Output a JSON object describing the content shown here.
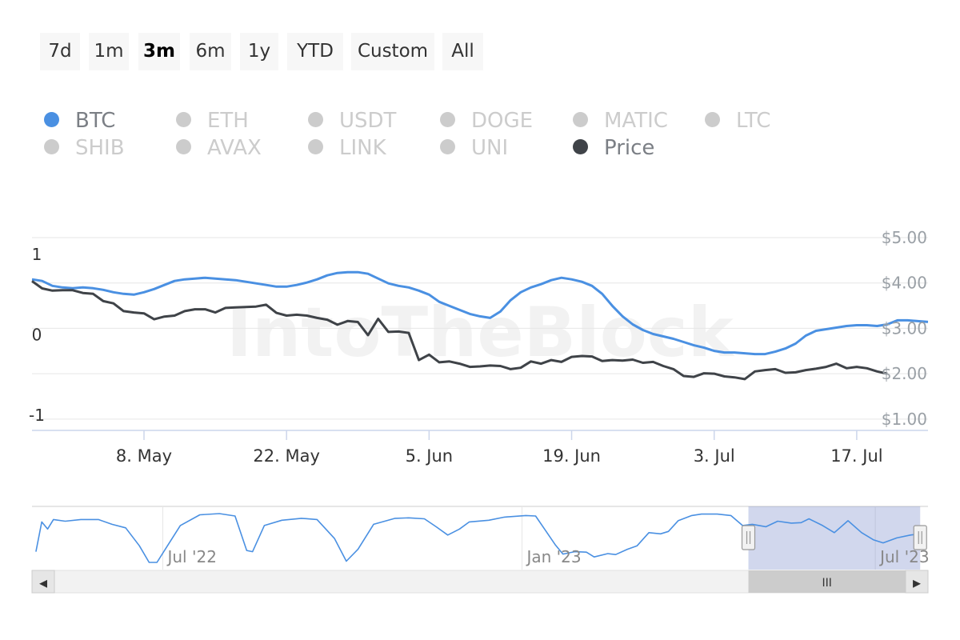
{
  "range_buttons": [
    {
      "label": "7d",
      "active": false
    },
    {
      "label": "1m",
      "active": false
    },
    {
      "label": "3m",
      "active": true
    },
    {
      "label": "6m",
      "active": false
    },
    {
      "label": "1y",
      "active": false
    },
    {
      "label": "YTD",
      "active": false
    },
    {
      "label": "Custom",
      "active": false
    },
    {
      "label": "All",
      "active": false
    }
  ],
  "legend": [
    {
      "label": "BTC",
      "color": "#4a90e2",
      "visible": true
    },
    {
      "label": "ETH",
      "color": "#cccccc",
      "visible": false
    },
    {
      "label": "USDT",
      "color": "#cccccc",
      "visible": false
    },
    {
      "label": "DOGE",
      "color": "#cccccc",
      "visible": false
    },
    {
      "label": "MATIC",
      "color": "#cccccc",
      "visible": false
    },
    {
      "label": "LTC",
      "color": "#cccccc",
      "visible": false
    },
    {
      "label": "SHIB",
      "color": "#cccccc",
      "visible": false
    },
    {
      "label": "AVAX",
      "color": "#cccccc",
      "visible": false
    },
    {
      "label": "LINK",
      "color": "#cccccc",
      "visible": false
    },
    {
      "label": "UNI",
      "color": "#cccccc",
      "visible": false
    },
    {
      "label": "Price",
      "color": "#3f4348",
      "visible": true
    }
  ],
  "watermark": "IntoTheBlock",
  "chart_data": {
    "type": "line",
    "x_ticks": [
      "8. May",
      "22. May",
      "5. Jun",
      "19. Jun",
      "3. Jul",
      "17. Jul"
    ],
    "x_tick_dates": [
      "2023-05-08",
      "2023-05-22",
      "2023-06-05",
      "2023-06-19",
      "2023-07-03",
      "2023-07-17"
    ],
    "x_range": [
      "2023-04-27",
      "2023-07-24"
    ],
    "y_left": {
      "ticks": [
        "1",
        "0",
        "-1"
      ],
      "tick_values": [
        1,
        0,
        -1
      ],
      "range": [
        -1.2,
        1.2
      ]
    },
    "y_right": {
      "ticks": [
        "$5.00",
        "$4.00",
        "$3.00",
        "$2.00",
        "$1.00"
      ],
      "tick_values": [
        5,
        4,
        3,
        2,
        1
      ],
      "range": [
        0.75,
        5.0
      ]
    },
    "grid": true,
    "legend_position": "top-left",
    "series": [
      {
        "name": "BTC",
        "axis": "left",
        "color": "#4a90e2",
        "points": [
          [
            "2023-04-27",
            0.68
          ],
          [
            "2023-04-28",
            0.66
          ],
          [
            "2023-04-29",
            0.6
          ],
          [
            "2023-04-30",
            0.58
          ],
          [
            "2023-05-01",
            0.57
          ],
          [
            "2023-05-02",
            0.58
          ],
          [
            "2023-05-03",
            0.57
          ],
          [
            "2023-05-04",
            0.55
          ],
          [
            "2023-05-05",
            0.52
          ],
          [
            "2023-05-06",
            0.5
          ],
          [
            "2023-05-07",
            0.49
          ],
          [
            "2023-05-08",
            0.52
          ],
          [
            "2023-05-09",
            0.56
          ],
          [
            "2023-05-10",
            0.61
          ],
          [
            "2023-05-11",
            0.66
          ],
          [
            "2023-05-12",
            0.68
          ],
          [
            "2023-05-13",
            0.69
          ],
          [
            "2023-05-14",
            0.7
          ],
          [
            "2023-05-15",
            0.69
          ],
          [
            "2023-05-16",
            0.68
          ],
          [
            "2023-05-17",
            0.67
          ],
          [
            "2023-05-18",
            0.65
          ],
          [
            "2023-05-19",
            0.63
          ],
          [
            "2023-05-20",
            0.61
          ],
          [
            "2023-05-21",
            0.59
          ],
          [
            "2023-05-22",
            0.59
          ],
          [
            "2023-05-23",
            0.61
          ],
          [
            "2023-05-24",
            0.64
          ],
          [
            "2023-05-25",
            0.68
          ],
          [
            "2023-05-26",
            0.73
          ],
          [
            "2023-05-27",
            0.76
          ],
          [
            "2023-05-28",
            0.77
          ],
          [
            "2023-05-29",
            0.77
          ],
          [
            "2023-05-30",
            0.75
          ],
          [
            "2023-05-31",
            0.69
          ],
          [
            "2023-06-01",
            0.63
          ],
          [
            "2023-06-02",
            0.6
          ],
          [
            "2023-06-03",
            0.58
          ],
          [
            "2023-06-04",
            0.54
          ],
          [
            "2023-06-05",
            0.49
          ],
          [
            "2023-06-06",
            0.4
          ],
          [
            "2023-06-07",
            0.35
          ],
          [
            "2023-06-08",
            0.3
          ],
          [
            "2023-06-09",
            0.25
          ],
          [
            "2023-06-10",
            0.22
          ],
          [
            "2023-06-11",
            0.2
          ],
          [
            "2023-06-12",
            0.28
          ],
          [
            "2023-06-13",
            0.42
          ],
          [
            "2023-06-14",
            0.52
          ],
          [
            "2023-06-15",
            0.58
          ],
          [
            "2023-06-16",
            0.62
          ],
          [
            "2023-06-17",
            0.67
          ],
          [
            "2023-06-18",
            0.7
          ],
          [
            "2023-06-19",
            0.68
          ],
          [
            "2023-06-20",
            0.65
          ],
          [
            "2023-06-21",
            0.6
          ],
          [
            "2023-06-22",
            0.5
          ],
          [
            "2023-06-23",
            0.35
          ],
          [
            "2023-06-24",
            0.22
          ],
          [
            "2023-06-25",
            0.12
          ],
          [
            "2023-06-26",
            0.05
          ],
          [
            "2023-06-27",
            0.0
          ],
          [
            "2023-06-28",
            -0.03
          ],
          [
            "2023-06-29",
            -0.06
          ],
          [
            "2023-06-30",
            -0.1
          ],
          [
            "2023-07-01",
            -0.14
          ],
          [
            "2023-07-02",
            -0.17
          ],
          [
            "2023-07-03",
            -0.21
          ],
          [
            "2023-07-04",
            -0.23
          ],
          [
            "2023-07-05",
            -0.23
          ],
          [
            "2023-07-06",
            -0.24
          ],
          [
            "2023-07-07",
            -0.25
          ],
          [
            "2023-07-08",
            -0.25
          ],
          [
            "2023-07-09",
            -0.22
          ],
          [
            "2023-07-10",
            -0.18
          ],
          [
            "2023-07-11",
            -0.12
          ],
          [
            "2023-07-12",
            -0.02
          ],
          [
            "2023-07-13",
            0.04
          ],
          [
            "2023-07-14",
            0.06
          ],
          [
            "2023-07-15",
            0.08
          ],
          [
            "2023-07-16",
            0.1
          ],
          [
            "2023-07-17",
            0.11
          ],
          [
            "2023-07-18",
            0.11
          ],
          [
            "2023-07-19",
            0.1
          ],
          [
            "2023-07-20",
            0.12
          ],
          [
            "2023-07-21",
            0.17
          ],
          [
            "2023-07-22",
            0.17
          ],
          [
            "2023-07-23",
            0.16
          ],
          [
            "2023-07-24",
            0.15
          ]
        ]
      },
      {
        "name": "Price",
        "axis": "right",
        "color": "#3f4348",
        "points": [
          [
            "2023-04-27",
            4.04
          ],
          [
            "2023-04-28",
            3.88
          ],
          [
            "2023-04-29",
            3.83
          ],
          [
            "2023-04-30",
            3.84
          ],
          [
            "2023-05-01",
            3.84
          ],
          [
            "2023-05-02",
            3.78
          ],
          [
            "2023-05-03",
            3.76
          ],
          [
            "2023-05-04",
            3.6
          ],
          [
            "2023-05-05",
            3.55
          ],
          [
            "2023-05-06",
            3.38
          ],
          [
            "2023-05-07",
            3.35
          ],
          [
            "2023-05-08",
            3.33
          ],
          [
            "2023-05-09",
            3.2
          ],
          [
            "2023-05-10",
            3.26
          ],
          [
            "2023-05-11",
            3.28
          ],
          [
            "2023-05-12",
            3.38
          ],
          [
            "2023-05-13",
            3.42
          ],
          [
            "2023-05-14",
            3.42
          ],
          [
            "2023-05-15",
            3.35
          ],
          [
            "2023-05-16",
            3.45
          ],
          [
            "2023-05-17",
            3.46
          ],
          [
            "2023-05-18",
            3.47
          ],
          [
            "2023-05-19",
            3.48
          ],
          [
            "2023-05-20",
            3.52
          ],
          [
            "2023-05-21",
            3.34
          ],
          [
            "2023-05-22",
            3.28
          ],
          [
            "2023-05-23",
            3.3
          ],
          [
            "2023-05-24",
            3.28
          ],
          [
            "2023-05-25",
            3.23
          ],
          [
            "2023-05-26",
            3.19
          ],
          [
            "2023-05-27",
            3.08
          ],
          [
            "2023-05-28",
            3.16
          ],
          [
            "2023-05-29",
            3.14
          ],
          [
            "2023-05-30",
            2.85
          ],
          [
            "2023-05-31",
            3.21
          ],
          [
            "2023-06-01",
            2.92
          ],
          [
            "2023-06-02",
            2.93
          ],
          [
            "2023-06-03",
            2.9
          ],
          [
            "2023-06-04",
            2.3
          ],
          [
            "2023-06-05",
            2.42
          ],
          [
            "2023-06-06",
            2.25
          ],
          [
            "2023-06-07",
            2.27
          ],
          [
            "2023-06-08",
            2.22
          ],
          [
            "2023-06-09",
            2.15
          ],
          [
            "2023-06-10",
            2.16
          ],
          [
            "2023-06-11",
            2.18
          ],
          [
            "2023-06-12",
            2.17
          ],
          [
            "2023-06-13",
            2.1
          ],
          [
            "2023-06-14",
            2.13
          ],
          [
            "2023-06-15",
            2.27
          ],
          [
            "2023-06-16",
            2.22
          ],
          [
            "2023-06-17",
            2.3
          ],
          [
            "2023-06-18",
            2.26
          ],
          [
            "2023-06-19",
            2.37
          ],
          [
            "2023-06-20",
            2.39
          ],
          [
            "2023-06-21",
            2.38
          ],
          [
            "2023-06-22",
            2.28
          ],
          [
            "2023-06-23",
            2.3
          ],
          [
            "2023-06-24",
            2.29
          ],
          [
            "2023-06-25",
            2.31
          ],
          [
            "2023-06-26",
            2.24
          ],
          [
            "2023-06-27",
            2.26
          ],
          [
            "2023-06-28",
            2.17
          ],
          [
            "2023-06-29",
            2.1
          ],
          [
            "2023-06-30",
            1.95
          ],
          [
            "2023-07-01",
            1.93
          ],
          [
            "2023-07-02",
            2.01
          ],
          [
            "2023-07-03",
            2.0
          ],
          [
            "2023-07-04",
            1.94
          ],
          [
            "2023-07-05",
            1.92
          ],
          [
            "2023-07-06",
            1.88
          ],
          [
            "2023-07-07",
            2.05
          ],
          [
            "2023-07-08",
            2.08
          ],
          [
            "2023-07-09",
            2.1
          ],
          [
            "2023-07-10",
            2.02
          ],
          [
            "2023-07-11",
            2.03
          ],
          [
            "2023-07-12",
            2.08
          ],
          [
            "2023-07-13",
            2.11
          ],
          [
            "2023-07-14",
            2.15
          ],
          [
            "2023-07-15",
            2.22
          ],
          [
            "2023-07-16",
            2.12
          ],
          [
            "2023-07-17",
            2.15
          ],
          [
            "2023-07-18",
            2.12
          ],
          [
            "2023-07-19",
            2.05
          ],
          [
            "2023-07-20",
            2.0
          ]
        ]
      }
    ],
    "navigator": {
      "x_ticks": [
        "Jul '22",
        "Jan '23",
        "Jul '23"
      ],
      "x_tick_dates": [
        "2022-07-01",
        "2023-01-01",
        "2023-07-01"
      ],
      "x_range": [
        "2022-04-25",
        "2023-07-28"
      ],
      "selected_range": [
        "2023-04-27",
        "2023-07-24"
      ],
      "series": {
        "name": "BTC",
        "color": "#4a90e2",
        "points": [
          [
            "2022-04-27",
            -0.6
          ],
          [
            "2022-04-30",
            0.65
          ],
          [
            "2022-05-03",
            0.35
          ],
          [
            "2022-05-06",
            0.75
          ],
          [
            "2022-05-12",
            0.68
          ],
          [
            "2022-05-20",
            0.75
          ],
          [
            "2022-05-29",
            0.75
          ],
          [
            "2022-06-05",
            0.55
          ],
          [
            "2022-06-12",
            0.4
          ],
          [
            "2022-06-19",
            -0.35
          ],
          [
            "2022-06-24",
            -1.05
          ],
          [
            "2022-06-28",
            -1.05
          ],
          [
            "2022-07-03",
            -0.4
          ],
          [
            "2022-07-10",
            0.5
          ],
          [
            "2022-07-20",
            0.95
          ],
          [
            "2022-07-30",
            1.0
          ],
          [
            "2022-08-07",
            0.9
          ],
          [
            "2022-08-13",
            -0.55
          ],
          [
            "2022-08-16",
            -0.6
          ],
          [
            "2022-08-22",
            0.5
          ],
          [
            "2022-08-31",
            0.72
          ],
          [
            "2022-09-10",
            0.8
          ],
          [
            "2022-09-18",
            0.75
          ],
          [
            "2022-09-27",
            -0.05
          ],
          [
            "2022-10-03",
            -1.0
          ],
          [
            "2022-10-09",
            -0.5
          ],
          [
            "2022-10-17",
            0.55
          ],
          [
            "2022-10-28",
            0.8
          ],
          [
            "2022-11-04",
            0.82
          ],
          [
            "2022-11-12",
            0.78
          ],
          [
            "2022-11-18",
            0.45
          ],
          [
            "2022-11-24",
            0.1
          ],
          [
            "2022-11-30",
            0.35
          ],
          [
            "2022-12-05",
            0.65
          ],
          [
            "2022-12-15",
            0.72
          ],
          [
            "2022-12-23",
            0.85
          ],
          [
            "2023-01-03",
            0.92
          ],
          [
            "2023-01-08",
            0.9
          ],
          [
            "2023-01-13",
            0.3
          ],
          [
            "2023-01-18",
            -0.3
          ],
          [
            "2023-01-22",
            -0.7
          ],
          [
            "2023-01-28",
            -0.6
          ],
          [
            "2023-02-03",
            -0.62
          ],
          [
            "2023-02-07",
            -0.82
          ],
          [
            "2023-02-14",
            -0.68
          ],
          [
            "2023-02-18",
            -0.72
          ],
          [
            "2023-02-24",
            -0.5
          ],
          [
            "2023-03-01",
            -0.35
          ],
          [
            "2023-03-07",
            0.2
          ],
          [
            "2023-03-13",
            0.15
          ],
          [
            "2023-03-17",
            0.25
          ],
          [
            "2023-03-22",
            0.7
          ],
          [
            "2023-03-29",
            0.92
          ],
          [
            "2023-04-03",
            0.98
          ],
          [
            "2023-04-11",
            0.98
          ],
          [
            "2023-04-18",
            0.92
          ],
          [
            "2023-04-24",
            0.5
          ],
          [
            "2023-04-29",
            0.55
          ],
          [
            "2023-05-06",
            0.45
          ],
          [
            "2023-05-12",
            0.68
          ],
          [
            "2023-05-19",
            0.6
          ],
          [
            "2023-05-24",
            0.62
          ],
          [
            "2023-05-28",
            0.78
          ],
          [
            "2023-06-04",
            0.5
          ],
          [
            "2023-06-10",
            0.2
          ],
          [
            "2023-06-17",
            0.7
          ],
          [
            "2023-06-24",
            0.2
          ],
          [
            "2023-06-30",
            -0.1
          ],
          [
            "2023-07-05",
            -0.23
          ],
          [
            "2023-07-12",
            -0.02
          ],
          [
            "2023-07-19",
            0.1
          ],
          [
            "2023-07-24",
            0.15
          ]
        ]
      }
    },
    "scrollbar": {
      "left_arrow": "◂",
      "right_arrow": "▸",
      "thumb_grip": "III"
    }
  }
}
